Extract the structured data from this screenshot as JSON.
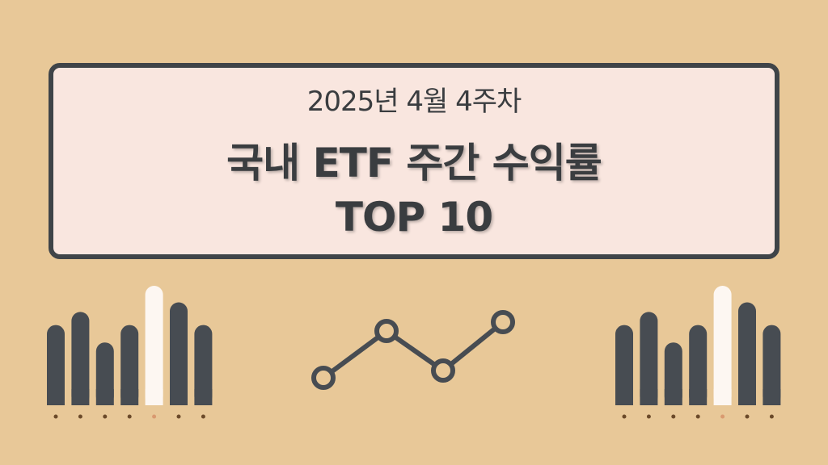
{
  "banner": {
    "subtitle": "2025년 4월 4주차",
    "title_line1": "국내 ETF 주간 수익률",
    "title_line2": "TOP 10"
  },
  "colors": {
    "background": "#e8c898",
    "panel": "#f9e6df",
    "dark": "#474c52",
    "highlight": "#fdf7f2",
    "dot": "#6b4a2a",
    "highlight_dot": "#d99a70"
  },
  "decor": {
    "bar_levels": [
      0.55,
      0.7,
      0.35,
      0.55,
      1.0,
      0.81,
      0.55
    ],
    "highlight_index": 4,
    "line_levels": [
      0.0,
      0.84,
      0.13,
      1.0
    ]
  }
}
